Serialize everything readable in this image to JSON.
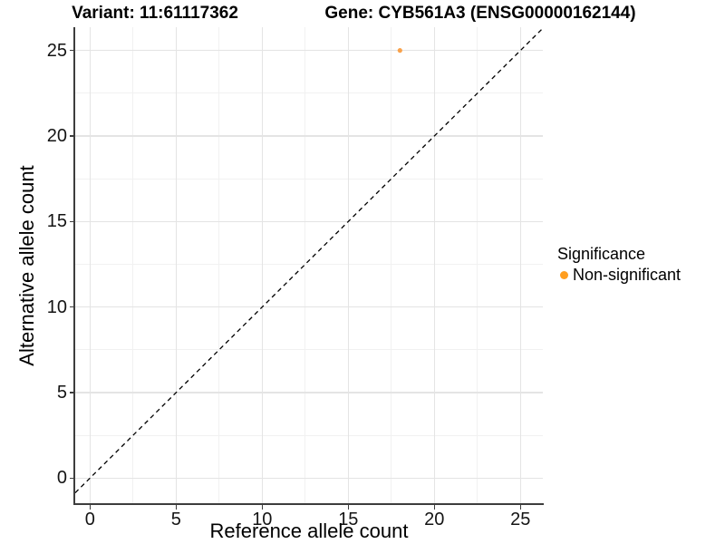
{
  "titles": {
    "variant": "Variant: 11:61117362",
    "gene": "Gene: CYB561A3 (ENSG00000162144)"
  },
  "legend": {
    "title": "Significance",
    "items": [
      {
        "label": "Non-significant",
        "color": "#FF9E1F"
      }
    ]
  },
  "chart_data": {
    "type": "scatter",
    "title": "Variant: 11:61117362  Gene: CYB561A3 (ENSG00000162144)",
    "xlabel": "Reference allele count",
    "ylabel": "Alternative allele count",
    "x_ticks": [
      0,
      5,
      10,
      15,
      20,
      25
    ],
    "y_ticks": [
      0,
      5,
      10,
      15,
      20,
      25
    ],
    "x_minor_ticks": [
      2.5,
      7.5,
      12.5,
      17.5,
      22.5
    ],
    "y_minor_ticks": [
      2.5,
      7.5,
      12.5,
      17.5,
      22.5
    ],
    "xlim": [
      -0.86,
      26.3
    ],
    "ylim": [
      -1.47,
      26.36
    ],
    "grid": "major+minor",
    "legend_position": "right",
    "series": [
      {
        "name": "Non-significant",
        "color": "#F9A24B",
        "points": [
          {
            "x": 18,
            "y": 25
          }
        ]
      }
    ],
    "reference_line": {
      "equation": "y = x",
      "style": "dashed",
      "color": "#000000"
    }
  }
}
